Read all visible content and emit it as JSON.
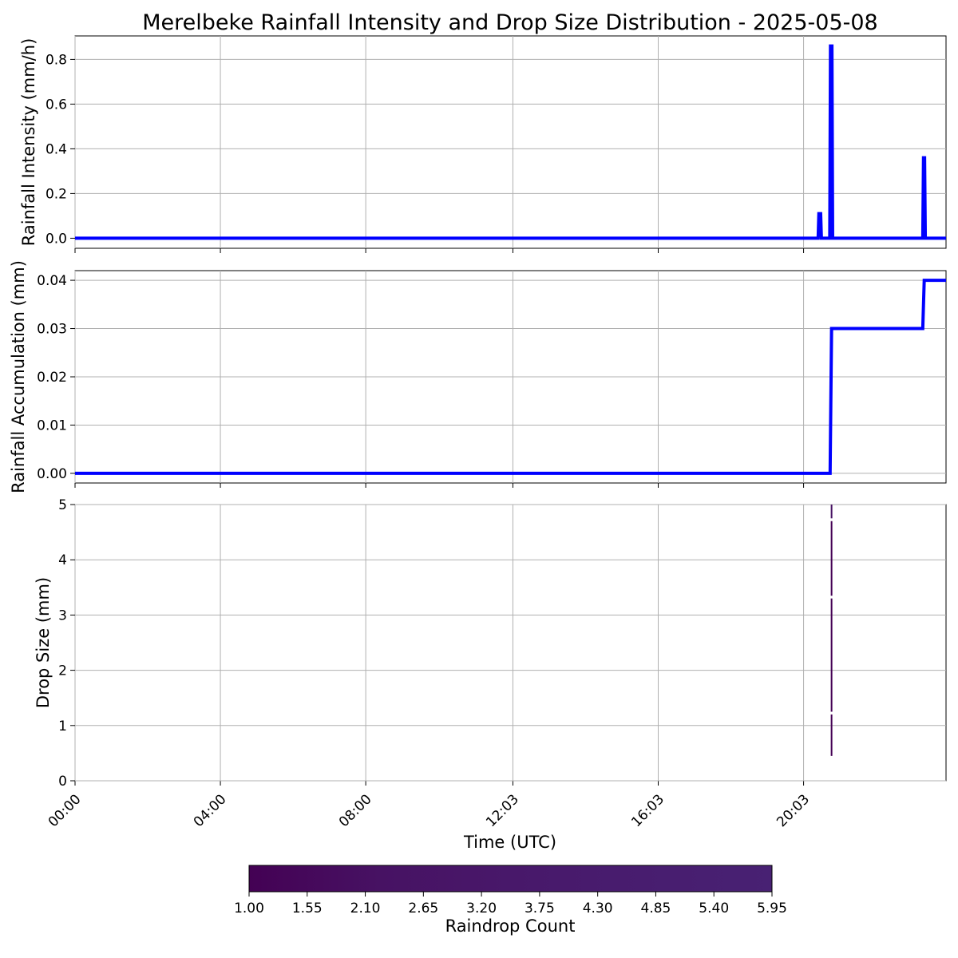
{
  "figure": {
    "title": "Merelbeke Rainfall Intensity and Drop Size Distribution - 2025-05-08",
    "xlabel": "Time (UTC)"
  },
  "colors": {
    "line": "#0000ff",
    "grid": "#b0b0b0",
    "colormap": [
      "#440154",
      "#471263",
      "#48186a",
      "#481d6f",
      "#482173"
    ]
  },
  "chart_data": [
    {
      "type": "line",
      "ylabel": "Rainfall Intensity (mm/h)",
      "xlim_hours": [
        0,
        23.97
      ],
      "ylim": [
        -0.045,
        0.905
      ],
      "yticks": [
        0.0,
        0.2,
        0.4,
        0.6,
        0.8
      ],
      "ytick_labels": [
        "0.0",
        "0.2",
        "0.4",
        "0.6",
        "0.8"
      ],
      "grid": true,
      "series": [
        {
          "x_hours": [
            0,
            20.45,
            20.47,
            20.52,
            20.54,
            20.77,
            20.79,
            20.83,
            20.85,
            23.33,
            23.35,
            23.38,
            23.4,
            23.97
          ],
          "values": [
            0,
            0,
            0.11,
            0.11,
            0,
            0,
            0.86,
            0.86,
            0,
            0,
            0.36,
            0.36,
            0,
            0
          ]
        }
      ]
    },
    {
      "type": "line",
      "ylabel": "Rainfall Accumulation (mm)",
      "xlim_hours": [
        0,
        23.97
      ],
      "ylim": [
        -0.002,
        0.042
      ],
      "yticks": [
        0.0,
        0.01,
        0.02,
        0.03,
        0.04
      ],
      "ytick_labels": [
        "0.00",
        "0.01",
        "0.02",
        "0.03",
        "0.04"
      ],
      "grid": true,
      "series": [
        {
          "x_hours": [
            0,
            20.78,
            20.82,
            23.33,
            23.37,
            23.97
          ],
          "values": [
            0,
            0,
            0.03,
            0.03,
            0.04,
            0.04
          ]
        }
      ]
    },
    {
      "type": "heatmap",
      "ylabel": "Drop Size (mm)",
      "xlim_hours": [
        0,
        23.97
      ],
      "ylim": [
        0,
        5
      ],
      "yticks": [
        0,
        1,
        2,
        3,
        4,
        5
      ],
      "ytick_labels": [
        "0",
        "1",
        "2",
        "3",
        "4",
        "5"
      ],
      "xticks_hours": [
        0,
        4,
        8,
        12.05,
        16.05,
        20.05
      ],
      "xtick_labels": [
        "00:00",
        "04:00",
        "08:00",
        "12:03",
        "16:03",
        "20:03"
      ],
      "grid": true,
      "cells": [
        {
          "x_hours": 20.82,
          "y_range": [
            0.45,
            1.2
          ],
          "count": 1
        },
        {
          "x_hours": 20.82,
          "y_range": [
            1.25,
            3.3
          ],
          "count": 1
        },
        {
          "x_hours": 20.82,
          "y_range": [
            3.35,
            4.7
          ],
          "count": 1
        },
        {
          "x_hours": 20.82,
          "y_range": [
            4.75,
            5.0
          ],
          "count": 2
        }
      ]
    }
  ],
  "colorbar": {
    "label": "Raindrop Count",
    "range": [
      1.0,
      5.95
    ],
    "tick_labels": [
      "1.00",
      "1.55",
      "2.10",
      "2.65",
      "3.20",
      "3.75",
      "4.30",
      "4.85",
      "5.40",
      "5.95"
    ]
  }
}
